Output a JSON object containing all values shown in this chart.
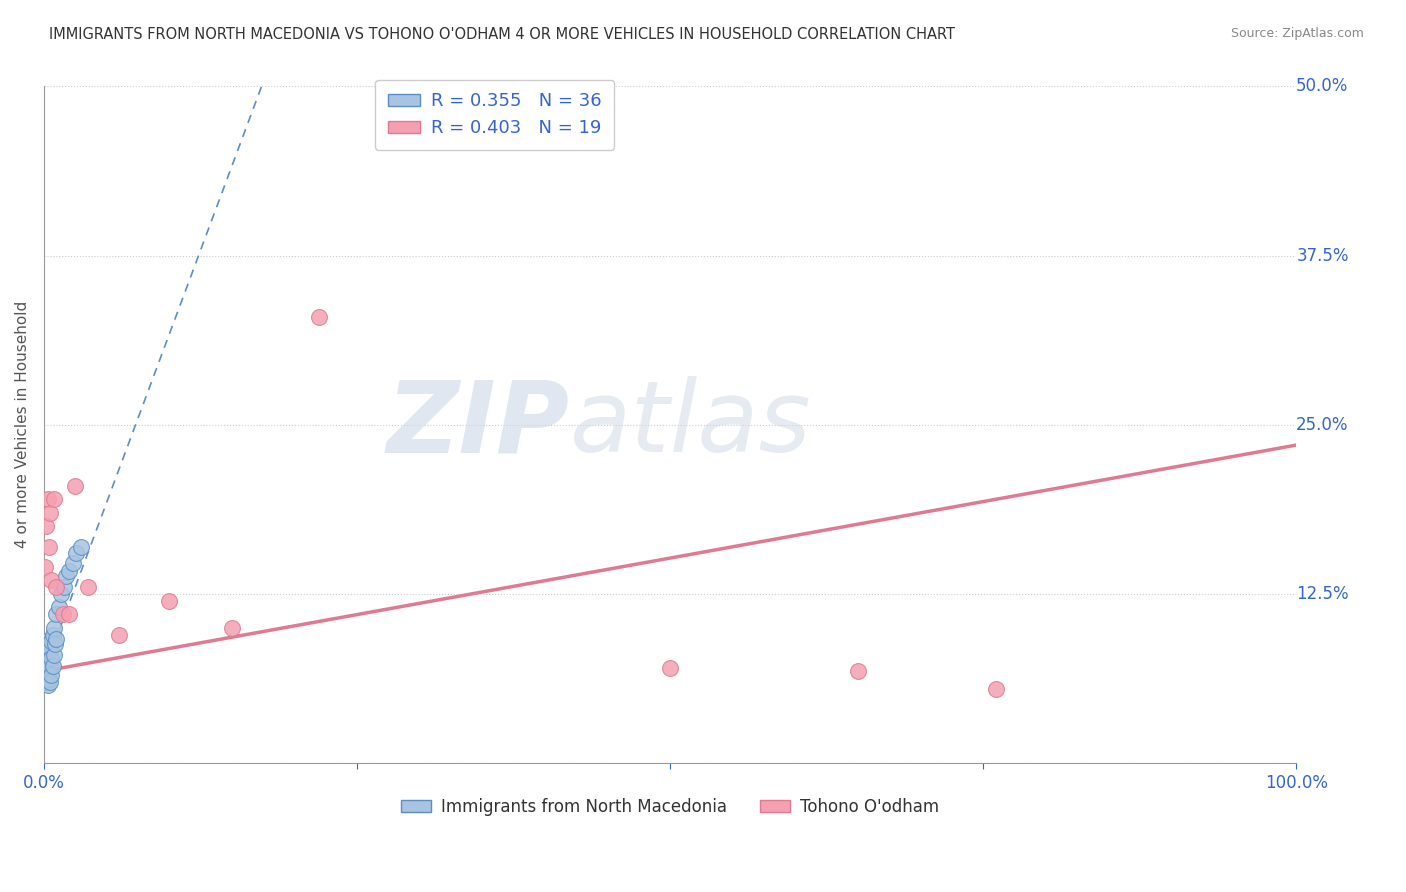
{
  "title": "IMMIGRANTS FROM NORTH MACEDONIA VS TOHONO O'ODHAM 4 OR MORE VEHICLES IN HOUSEHOLD CORRELATION CHART",
  "source": "Source: ZipAtlas.com",
  "ylabel": "4 or more Vehicles in Household",
  "xlim": [
    0.0,
    1.0
  ],
  "ylim": [
    0.0,
    0.5
  ],
  "xticks": [
    0.0,
    0.25,
    0.5,
    0.75,
    1.0
  ],
  "xticklabels": [
    "0.0%",
    "",
    "",
    "",
    "100.0%"
  ],
  "yticks": [
    0.0,
    0.125,
    0.25,
    0.375,
    0.5
  ],
  "yticklabels": [
    "",
    "12.5%",
    "25.0%",
    "37.5%",
    "50.0%"
  ],
  "legend_blue_label": "R = 0.355   N = 36",
  "legend_pink_label": "R = 0.403   N = 19",
  "legend_bottom_blue": "Immigrants from North Macedonia",
  "legend_bottom_pink": "Tohono O'odham",
  "blue_color": "#a8c4e0",
  "pink_color": "#f4a0b0",
  "blue_line_color": "#5b8ec7",
  "pink_line_color": "#e07a90",
  "watermark_zip": "ZIP",
  "watermark_atlas": "atlas",
  "blue_scatter_x": [
    0.001,
    0.001,
    0.001,
    0.001,
    0.002,
    0.002,
    0.002,
    0.002,
    0.003,
    0.003,
    0.003,
    0.003,
    0.004,
    0.004,
    0.004,
    0.005,
    0.005,
    0.005,
    0.006,
    0.006,
    0.006,
    0.007,
    0.007,
    0.008,
    0.008,
    0.009,
    0.01,
    0.01,
    0.012,
    0.014,
    0.016,
    0.018,
    0.02,
    0.023,
    0.026,
    0.03
  ],
  "blue_scatter_y": [
    0.065,
    0.075,
    0.08,
    0.085,
    0.06,
    0.068,
    0.078,
    0.09,
    0.058,
    0.065,
    0.072,
    0.082,
    0.062,
    0.07,
    0.08,
    0.06,
    0.072,
    0.085,
    0.065,
    0.078,
    0.09,
    0.072,
    0.095,
    0.08,
    0.1,
    0.088,
    0.092,
    0.11,
    0.115,
    0.125,
    0.13,
    0.138,
    0.142,
    0.148,
    0.155,
    0.16
  ],
  "pink_scatter_x": [
    0.001,
    0.002,
    0.003,
    0.004,
    0.005,
    0.006,
    0.008,
    0.01,
    0.015,
    0.02,
    0.025,
    0.035,
    0.06,
    0.1,
    0.15,
    0.22,
    0.5,
    0.65,
    0.76
  ],
  "pink_scatter_y": [
    0.145,
    0.175,
    0.195,
    0.16,
    0.185,
    0.135,
    0.195,
    0.13,
    0.11,
    0.11,
    0.205,
    0.13,
    0.095,
    0.12,
    0.1,
    0.33,
    0.07,
    0.068,
    0.055
  ],
  "blue_trend_x0": 0.0,
  "blue_trend_x1": 0.035,
  "blue_trend_y0": 0.068,
  "blue_trend_y1": 0.155,
  "pink_trend_x0": 0.0,
  "pink_trend_x1": 1.0,
  "pink_trend_y0": 0.068,
  "pink_trend_y1": 0.235,
  "background_color": "#ffffff",
  "grid_color": "#cccccc"
}
